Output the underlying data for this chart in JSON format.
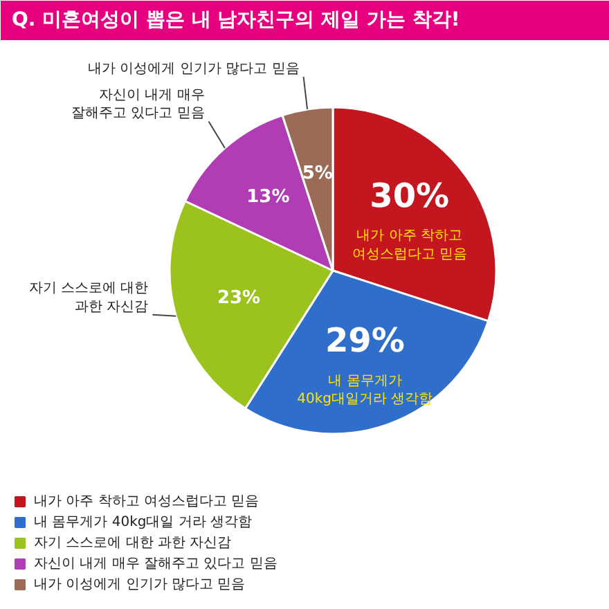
{
  "chart_data": {
    "type": "pie",
    "title": "Q. 미혼여성이 뽑은 내 남자친구의 제일 가는 착각!",
    "categories": [
      "내가 아주 착하고 여성스럽다고 믿음",
      "내 몸무게가 40kg대일 거라 생각함",
      "자기 스스로에 대한 과한 자신감",
      "자신이 내게 매우 잘해주고 있다고 믿음",
      "내가 이성에게 인기가 많다고 믿음"
    ],
    "values": [
      30,
      29,
      23,
      13,
      5
    ],
    "colors": [
      "#c3161f",
      "#2f6fcb",
      "#9cc21e",
      "#b03db4",
      "#9b6b57"
    ],
    "value_labels": [
      "30%",
      "29%",
      "23%",
      "13%",
      "5%"
    ],
    "annotations": [
      {
        "text": "내가 아주 착하고\n여성스럽다고 믿음",
        "x": "내가 아주 착하고 여성스럽다고 믿음"
      },
      {
        "text": "내 몸무게가\n40kg대일거라 생각함",
        "x": "내 몸무게가 40kg대일 거라 생각함"
      },
      {
        "text": "자기 스스로에 대한\n과한 자신감",
        "x": "자기 스스로에 대한 과한 자신감"
      },
      {
        "text": "자신이 내게 매우\n잘해주고 있다고 믿음",
        "x": "자신이 내게 매우 잘해주고 있다고 믿음"
      },
      {
        "text": "내가 이성에게 인기가 많다고 믿음",
        "x": "내가 이성에게 인기가 많다고 믿음"
      }
    ],
    "legend": "bottom left"
  }
}
